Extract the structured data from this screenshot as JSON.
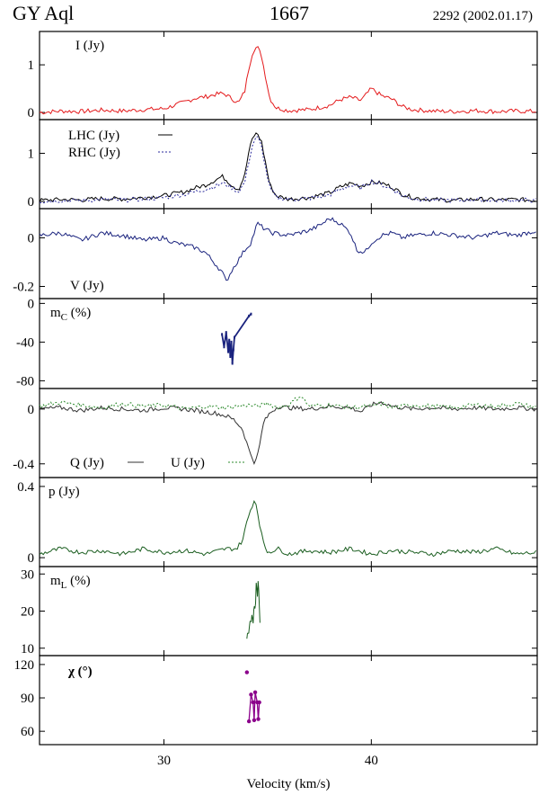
{
  "header": {
    "source": "GY Aql",
    "frequency": "1667",
    "epoch": "2292 (2002.01.17)"
  },
  "xaxis": {
    "label": "Velocity (km/s)",
    "range": [
      24,
      48
    ],
    "ticks": [
      30,
      40
    ],
    "tick_labels": [
      "30",
      "40"
    ]
  },
  "chart_data": [
    {
      "type": "line",
      "label": "I (Jy)",
      "ylim": [
        -0.15,
        1.7
      ],
      "yticks": [
        0,
        1
      ],
      "ytick_labels": [
        "0",
        "1"
      ],
      "colors": [
        "#e41a1c"
      ],
      "series": [
        {
          "x": [
            24,
            25,
            26,
            27,
            28,
            29,
            30,
            30.5,
            31,
            31.5,
            32,
            32.5,
            32.8,
            33,
            33.3,
            33.6,
            33.9,
            34.1,
            34.3,
            34.5,
            34.7,
            34.9,
            35.1,
            35.4,
            36,
            37,
            38,
            38.5,
            39,
            39.5,
            40,
            40.5,
            41,
            41.5,
            42,
            43,
            44,
            45,
            46,
            47,
            48
          ],
          "y": [
            0,
            0.03,
            0.02,
            0.05,
            0.03,
            0.06,
            0.08,
            0.15,
            0.22,
            0.3,
            0.33,
            0.38,
            0.4,
            0.37,
            0.28,
            0.2,
            0.45,
            0.95,
            1.3,
            1.38,
            1.2,
            0.75,
            0.3,
            0.1,
            0.04,
            0.06,
            0.15,
            0.27,
            0.32,
            0.25,
            0.5,
            0.35,
            0.28,
            0.12,
            0.06,
            0.03,
            0.02,
            0.04,
            0.02,
            0.03,
            0.02
          ]
        }
      ]
    },
    {
      "type": "line",
      "label": "",
      "ylim": [
        -0.15,
        1.7
      ],
      "yticks": [
        0,
        1
      ],
      "ytick_labels": [
        "0",
        "1"
      ],
      "legend_position": "top-left",
      "series": [
        {
          "name": "LHC (Jy)",
          "color": "#000000",
          "dash": "",
          "x": [
            24,
            25,
            26,
            27,
            28,
            29,
            30,
            31,
            31.5,
            32,
            32.5,
            32.8,
            33,
            33.3,
            33.6,
            33.9,
            34.1,
            34.3,
            34.5,
            34.7,
            34.9,
            35.1,
            35.4,
            36,
            37,
            38,
            38.5,
            39,
            39.5,
            40,
            40.5,
            41,
            41.5,
            42,
            43,
            44,
            45,
            46,
            47,
            48
          ],
          "y": [
            0.02,
            0.04,
            0.03,
            0.06,
            0.05,
            0.08,
            0.12,
            0.2,
            0.28,
            0.34,
            0.45,
            0.52,
            0.45,
            0.33,
            0.25,
            0.55,
            1.05,
            1.35,
            1.42,
            1.25,
            0.8,
            0.35,
            0.12,
            0.05,
            0.08,
            0.18,
            0.3,
            0.38,
            0.32,
            0.4,
            0.38,
            0.3,
            0.15,
            0.08,
            0.04,
            0.02,
            0.05,
            0.03,
            0.04,
            0.02
          ]
        },
        {
          "name": "RHC (Jy)",
          "color": "#2a2a9c",
          "dash": "2,2",
          "x": [
            24,
            25,
            26,
            27,
            28,
            29,
            30,
            31,
            31.5,
            32,
            32.5,
            32.8,
            33,
            33.3,
            33.6,
            33.9,
            34.1,
            34.3,
            34.5,
            34.7,
            34.9,
            35.1,
            35.4,
            36,
            37,
            38,
            38.5,
            39,
            39.5,
            40,
            40.5,
            41,
            41.5,
            42,
            43,
            44,
            45,
            46,
            47,
            48
          ],
          "y": [
            0,
            0.02,
            0.02,
            0.04,
            0.03,
            0.05,
            0.08,
            0.15,
            0.2,
            0.25,
            0.32,
            0.38,
            0.35,
            0.28,
            0.2,
            0.4,
            0.85,
            1.22,
            1.35,
            1.15,
            0.7,
            0.28,
            0.09,
            0.04,
            0.06,
            0.14,
            0.25,
            0.33,
            0.28,
            0.42,
            0.35,
            0.26,
            0.12,
            0.06,
            0.03,
            0.02,
            0.04,
            0.02,
            0.03,
            0.02
          ]
        }
      ]
    },
    {
      "type": "line",
      "label": "V (Jy)",
      "ylim": [
        -0.25,
        0.12
      ],
      "yticks": [
        0,
        -0.2
      ],
      "ytick_labels": [
        "0",
        "-0.2"
      ],
      "colors": [
        "#1a237e"
      ],
      "series": [
        {
          "x": [
            24,
            25,
            26,
            27,
            28,
            29,
            30,
            30.5,
            31,
            31.5,
            32,
            32.4,
            32.8,
            33,
            33.3,
            33.6,
            33.9,
            34.2,
            34.5,
            34.8,
            35.2,
            36,
            37,
            37.5,
            38,
            38.5,
            39,
            39.3,
            39.7,
            40,
            40.5,
            41,
            41.5,
            42,
            43,
            44,
            45,
            46,
            47,
            48
          ],
          "y": [
            0.01,
            0.02,
            -0.01,
            0.02,
            0.01,
            -0.01,
            0.0,
            -0.02,
            -0.03,
            -0.04,
            -0.06,
            -0.1,
            -0.14,
            -0.18,
            -0.13,
            -0.09,
            -0.05,
            -0.02,
            0.06,
            0.04,
            0.02,
            0.01,
            0.03,
            0.05,
            0.08,
            0.06,
            0.02,
            -0.05,
            -0.06,
            -0.02,
            0.01,
            0.02,
            0.0,
            0.01,
            0.02,
            0.01,
            0.0,
            0.02,
            0.01,
            0.03
          ]
        }
      ]
    },
    {
      "type": "scatter",
      "label": "mC (%)",
      "label_main": "m",
      "label_sub": "C",
      "label_rest": " (%)",
      "ylim": [
        -88,
        5
      ],
      "yticks": [
        0,
        -40,
        -80
      ],
      "ytick_labels": [
        "0",
        "-40",
        "-80"
      ],
      "colors": [
        "#1a237e"
      ],
      "series": [
        {
          "x": [
            32.8,
            32.9,
            33.0,
            33.1,
            33.15,
            33.2,
            33.25,
            33.3,
            33.35,
            33.4,
            34.1,
            34.2
          ],
          "y": [
            -32,
            -45,
            -30,
            -50,
            -38,
            -55,
            -40,
            -62,
            -48,
            -35,
            -13,
            -11
          ]
        }
      ]
    },
    {
      "type": "line",
      "label": "",
      "ylim": [
        -0.5,
        0.15
      ],
      "yticks": [
        0,
        -0.4
      ],
      "ytick_labels": [
        "0",
        "-0.4"
      ],
      "legend_position": "bottom",
      "series": [
        {
          "name": "Q (Jy)",
          "color": "#333333",
          "dash": "",
          "x": [
            24,
            25,
            26,
            27,
            28,
            29,
            30,
            31,
            32,
            32.5,
            33,
            33.4,
            33.8,
            34.1,
            34.4,
            34.6,
            34.8,
            35.1,
            35.5,
            36,
            37,
            38,
            39,
            39.5,
            40,
            40.5,
            41,
            42,
            43,
            44,
            45,
            46,
            47,
            48
          ],
          "y": [
            0.0,
            0.01,
            -0.01,
            0.01,
            0.0,
            -0.01,
            0.01,
            0.0,
            -0.02,
            -0.03,
            -0.05,
            -0.08,
            -0.15,
            -0.3,
            -0.4,
            -0.28,
            -0.1,
            -0.03,
            0.02,
            0.01,
            0.0,
            0.02,
            0.01,
            -0.02,
            0.03,
            0.05,
            0.02,
            0.0,
            0.01,
            0.0,
            0.01,
            0.0,
            0.01,
            0.0
          ]
        },
        {
          "name": "U (Jy)",
          "color": "#2e8b2e",
          "dash": "2,2",
          "x": [
            24,
            25,
            26,
            27,
            28,
            29,
            30,
            31,
            32,
            33,
            34,
            34.5,
            35,
            35.5,
            36,
            36.6,
            37,
            38,
            39,
            40,
            40.5,
            41,
            42,
            43,
            44,
            45,
            46,
            47,
            48
          ],
          "y": [
            0.02,
            0.05,
            0.03,
            0.01,
            0.04,
            0.02,
            0.03,
            0.0,
            0.02,
            0.01,
            0.03,
            0.02,
            0.04,
            0.01,
            0.03,
            0.1,
            0.02,
            0.03,
            0.01,
            0.02,
            0.04,
            0.01,
            0.03,
            0.02,
            0.01,
            0.03,
            0.02,
            0.04,
            0.01
          ]
        }
      ]
    },
    {
      "type": "line",
      "label": "p (Jy)",
      "ylim": [
        -0.05,
        0.45
      ],
      "yticks": [
        0,
        0.4
      ],
      "ytick_labels": [
        "0",
        "0.4"
      ],
      "colors": [
        "#1b5e20"
      ],
      "series": [
        {
          "x": [
            24,
            25,
            26,
            27,
            28,
            29,
            30,
            31,
            32,
            33,
            33.5,
            33.8,
            34.0,
            34.2,
            34.4,
            34.6,
            34.8,
            35.0,
            35.5,
            36,
            37,
            38,
            39,
            40,
            41,
            42,
            43,
            44,
            45,
            46,
            47,
            48
          ],
          "y": [
            0.02,
            0.05,
            0.03,
            0.04,
            0.02,
            0.05,
            0.03,
            0.04,
            0.02,
            0.05,
            0.05,
            0.1,
            0.2,
            0.28,
            0.33,
            0.2,
            0.08,
            0.03,
            0.05,
            0.02,
            0.04,
            0.03,
            0.05,
            0.02,
            0.04,
            0.03,
            0.02,
            0.04,
            0.03,
            0.05,
            0.02,
            0.03
          ]
        }
      ]
    },
    {
      "type": "line",
      "label": "mL (%)",
      "label_main": "m",
      "label_sub": "L",
      "label_rest": " (%)",
      "ylim": [
        8,
        32
      ],
      "yticks": [
        10,
        20,
        30
      ],
      "ytick_labels": [
        "10",
        "20",
        "30"
      ],
      "colors": [
        "#1b5e20"
      ],
      "series": [
        {
          "x": [
            34.0,
            34.05,
            34.1,
            34.15,
            34.2,
            34.25,
            34.3,
            34.35,
            34.4,
            34.45,
            34.5,
            34.55,
            34.6,
            34.65
          ],
          "y": [
            12,
            15,
            14,
            18,
            16,
            20,
            17,
            23,
            19,
            27,
            24,
            28,
            21,
            13
          ]
        }
      ]
    },
    {
      "type": "scatter",
      "label": "χ (°)",
      "ylim": [
        48,
        128
      ],
      "yticks": [
        60,
        90,
        120
      ],
      "ytick_labels": [
        "60",
        "90",
        "120"
      ],
      "colors": [
        "#8b008b"
      ],
      "series": [
        {
          "x": [
            34.0,
            34.1,
            34.2,
            34.3,
            34.35,
            34.4,
            34.5,
            34.55,
            34.6
          ],
          "y": [
            113,
            69,
            93,
            86,
            70,
            95,
            86,
            71,
            86
          ]
        }
      ]
    }
  ]
}
